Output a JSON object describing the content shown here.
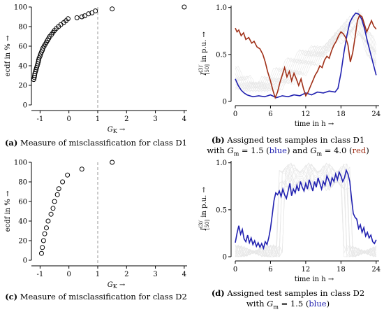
{
  "chart_data": [
    {
      "id": "a",
      "type": "scatter",
      "caption_letter": "(a)",
      "caption_text": " Measure of misclassification for class D1",
      "xlabel_main": "G",
      "xlabel_sub": "K",
      "xlabel_arrow": "→",
      "ylabel": "ecdf in % →",
      "xlim": [
        -1.3,
        4.1
      ],
      "ylim": [
        0,
        100
      ],
      "xticks": [
        -1,
        0,
        1,
        2,
        3,
        4
      ],
      "yticks": [
        0,
        20,
        40,
        60,
        80,
        100
      ],
      "vline_x": 1,
      "points": [
        [
          -1.22,
          26
        ],
        [
          -1.2,
          28
        ],
        [
          -1.19,
          30
        ],
        [
          -1.18,
          32
        ],
        [
          -1.16,
          34
        ],
        [
          -1.14,
          36
        ],
        [
          -1.12,
          38
        ],
        [
          -1.1,
          40
        ],
        [
          -1.08,
          42
        ],
        [
          -1.06,
          44
        ],
        [
          -1.05,
          46
        ],
        [
          -1.03,
          48
        ],
        [
          -1.0,
          50
        ],
        [
          -0.98,
          52
        ],
        [
          -0.95,
          54
        ],
        [
          -0.92,
          56
        ],
        [
          -0.9,
          58
        ],
        [
          -0.86,
          60
        ],
        [
          -0.82,
          62
        ],
        [
          -0.78,
          64
        ],
        [
          -0.74,
          66
        ],
        [
          -0.7,
          68
        ],
        [
          -0.66,
          70
        ],
        [
          -0.6,
          72
        ],
        [
          -0.55,
          74
        ],
        [
          -0.5,
          76
        ],
        [
          -0.44,
          78
        ],
        [
          -0.36,
          80
        ],
        [
          -0.28,
          82
        ],
        [
          -0.18,
          84
        ],
        [
          -0.1,
          86
        ],
        [
          -0.03,
          88
        ],
        [
          0.28,
          89
        ],
        [
          0.45,
          90
        ],
        [
          0.55,
          91
        ],
        [
          0.68,
          93
        ],
        [
          0.8,
          94
        ],
        [
          0.92,
          96
        ],
        [
          1.5,
          98
        ],
        [
          4.0,
          100
        ]
      ]
    },
    {
      "id": "b",
      "type": "line",
      "caption_letter": "(b)",
      "caption_text": " Assigned test samples in class D1",
      "caption_line2_pre": "with ",
      "caption_g1": "G",
      "caption_g1_sub": "m",
      "caption_g1_val": " = 1.5 (",
      "caption_blue": "blue",
      "caption_mid": ") and ",
      "caption_g2": "G",
      "caption_g2_sub": "m",
      "caption_g2_val": " = 4.0 (",
      "caption_red": "red",
      "caption_end": ")",
      "xlabel": "time in h →",
      "ylabel_main": "I",
      "ylabel_sup": "(3)′",
      "ylabel_sub": "[50]",
      "ylabel_rest": " in p.u. →",
      "xlim": [
        0,
        24.5
      ],
      "ylim": [
        0,
        1.02
      ],
      "xticks": [
        0,
        6,
        12,
        18,
        24
      ],
      "yticks": [
        0,
        0.5,
        1.0
      ],
      "ytick_labels": [
        "0",
        "0.5",
        "1.0"
      ],
      "series": [
        {
          "color": "#2020b0",
          "x": [
            0,
            0.5,
            1,
            1.5,
            2,
            3,
            4,
            5,
            6,
            7,
            8,
            9,
            10,
            11,
            12,
            13,
            14,
            15,
            16,
            17,
            17.5,
            18,
            18.5,
            19,
            19.5,
            20,
            20.5,
            21,
            21.5,
            22,
            22.5,
            23,
            23.5,
            24
          ],
          "y": [
            0.24,
            0.17,
            0.12,
            0.09,
            0.07,
            0.05,
            0.06,
            0.05,
            0.07,
            0.04,
            0.06,
            0.05,
            0.07,
            0.06,
            0.09,
            0.07,
            0.1,
            0.09,
            0.11,
            0.1,
            0.14,
            0.3,
            0.52,
            0.7,
            0.84,
            0.9,
            0.94,
            0.93,
            0.88,
            0.78,
            0.64,
            0.52,
            0.4,
            0.28
          ]
        },
        {
          "color": "#a03018",
          "x": [
            0,
            0.3,
            0.6,
            1,
            1.4,
            1.8,
            2.3,
            2.8,
            3.2,
            3.7,
            4.2,
            4.7,
            5.1,
            5.5,
            6,
            6.4,
            6.8,
            7.2,
            7.6,
            8,
            8.4,
            8.8,
            9.2,
            9.6,
            10,
            10.4,
            10.8,
            11.2,
            11.6,
            12,
            12.4,
            12.8,
            13.2,
            13.6,
            14,
            14.4,
            14.8,
            15.2,
            15.6,
            16,
            16.4,
            16.8,
            17.2,
            17.6,
            18,
            18.4,
            18.8,
            19.2,
            19.6,
            20,
            20.4,
            20.8,
            21.2,
            21.6,
            22,
            22.4,
            22.8,
            23.2,
            23.6,
            24
          ],
          "y": [
            0.78,
            0.74,
            0.76,
            0.7,
            0.73,
            0.66,
            0.68,
            0.62,
            0.64,
            0.58,
            0.56,
            0.5,
            0.42,
            0.32,
            0.22,
            0.12,
            0.04,
            0.1,
            0.2,
            0.28,
            0.36,
            0.26,
            0.32,
            0.22,
            0.3,
            0.24,
            0.17,
            0.24,
            0.14,
            0.06,
            0.1,
            0.16,
            0.22,
            0.28,
            0.32,
            0.38,
            0.36,
            0.44,
            0.48,
            0.46,
            0.54,
            0.6,
            0.64,
            0.7,
            0.74,
            0.72,
            0.68,
            0.6,
            0.42,
            0.52,
            0.68,
            0.86,
            0.92,
            0.9,
            0.82,
            0.74,
            0.8,
            0.86,
            0.8,
            0.77
          ]
        }
      ]
    },
    {
      "id": "c",
      "type": "scatter",
      "caption_letter": "(c)",
      "caption_text": " Measure of misclassification for class D2",
      "xlabel_main": "G",
      "xlabel_sub": "K",
      "xlabel_arrow": "→",
      "ylabel": "ecdf in % →",
      "xlim": [
        -1.3,
        4.1
      ],
      "ylim": [
        0,
        100
      ],
      "xticks": [
        -1,
        0,
        1,
        2,
        3,
        4
      ],
      "yticks": [
        0,
        20,
        40,
        60,
        80,
        100
      ],
      "vline_x": 1,
      "points": [
        [
          -0.95,
          7
        ],
        [
          -0.92,
          13
        ],
        [
          -0.88,
          20
        ],
        [
          -0.84,
          27
        ],
        [
          -0.78,
          33
        ],
        [
          -0.72,
          40
        ],
        [
          -0.62,
          47
        ],
        [
          -0.55,
          53
        ],
        [
          -0.5,
          60
        ],
        [
          -0.4,
          67
        ],
        [
          -0.35,
          73
        ],
        [
          -0.22,
          80
        ],
        [
          -0.05,
          87
        ],
        [
          0.45,
          93
        ],
        [
          1.5,
          100
        ]
      ]
    },
    {
      "id": "d",
      "type": "line",
      "caption_letter": "(d)",
      "caption_text": " Assigned test samples in class D2",
      "caption_line2_pre": "with ",
      "caption_g1": "G",
      "caption_g1_sub": "m",
      "caption_g1_val": " = 1.5 (",
      "caption_blue": "blue",
      "caption_end": ")",
      "xlabel": "time in h →",
      "ylabel_main": "I",
      "ylabel_sup": "(3)′",
      "ylabel_sub": "[50]",
      "ylabel_rest": " in p.u. →",
      "xlim": [
        0,
        24.5
      ],
      "ylim": [
        0,
        1.02
      ],
      "xticks": [
        0,
        6,
        12,
        18,
        24
      ],
      "yticks": [
        0,
        0.5,
        1.0
      ],
      "ytick_labels": [
        "0",
        "0.5",
        "1.0"
      ],
      "series": [
        {
          "color": "#2020b0",
          "x": [
            0,
            0.3,
            0.6,
            0.9,
            1.2,
            1.5,
            1.8,
            2.1,
            2.4,
            2.7,
            3,
            3.3,
            3.6,
            3.9,
            4.2,
            4.5,
            4.8,
            5.1,
            5.4,
            5.7,
            6,
            6.3,
            6.6,
            6.9,
            7.2,
            7.5,
            7.8,
            8.1,
            8.4,
            8.7,
            9,
            9.3,
            9.6,
            9.9,
            10.2,
            10.5,
            10.8,
            11.1,
            11.4,
            11.7,
            12,
            12.3,
            12.6,
            12.9,
            13.2,
            13.5,
            13.8,
            14.1,
            14.4,
            14.7,
            15,
            15.3,
            15.6,
            15.9,
            16.2,
            16.5,
            16.8,
            17.1,
            17.4,
            17.7,
            18,
            18.3,
            18.6,
            18.9,
            19.2,
            19.5,
            19.8,
            20.1,
            20.4,
            20.7,
            21,
            21.3,
            21.6,
            21.9,
            22.2,
            22.5,
            22.8,
            23.1,
            23.4,
            23.7,
            24
          ],
          "y": [
            0.15,
            0.25,
            0.33,
            0.24,
            0.29,
            0.19,
            0.16,
            0.23,
            0.15,
            0.2,
            0.13,
            0.17,
            0.11,
            0.15,
            0.1,
            0.14,
            0.09,
            0.16,
            0.13,
            0.2,
            0.3,
            0.45,
            0.6,
            0.68,
            0.66,
            0.7,
            0.64,
            0.72,
            0.66,
            0.62,
            0.7,
            0.78,
            0.65,
            0.72,
            0.68,
            0.76,
            0.7,
            0.8,
            0.74,
            0.7,
            0.78,
            0.72,
            0.82,
            0.76,
            0.7,
            0.8,
            0.74,
            0.84,
            0.78,
            0.72,
            0.8,
            0.76,
            0.86,
            0.82,
            0.76,
            0.84,
            0.8,
            0.88,
            0.82,
            0.9,
            0.86,
            0.8,
            0.84,
            0.92,
            0.88,
            0.8,
            0.62,
            0.46,
            0.42,
            0.4,
            0.3,
            0.34,
            0.26,
            0.31,
            0.22,
            0.26,
            0.2,
            0.23,
            0.16,
            0.14,
            0.18
          ]
        }
      ]
    }
  ]
}
